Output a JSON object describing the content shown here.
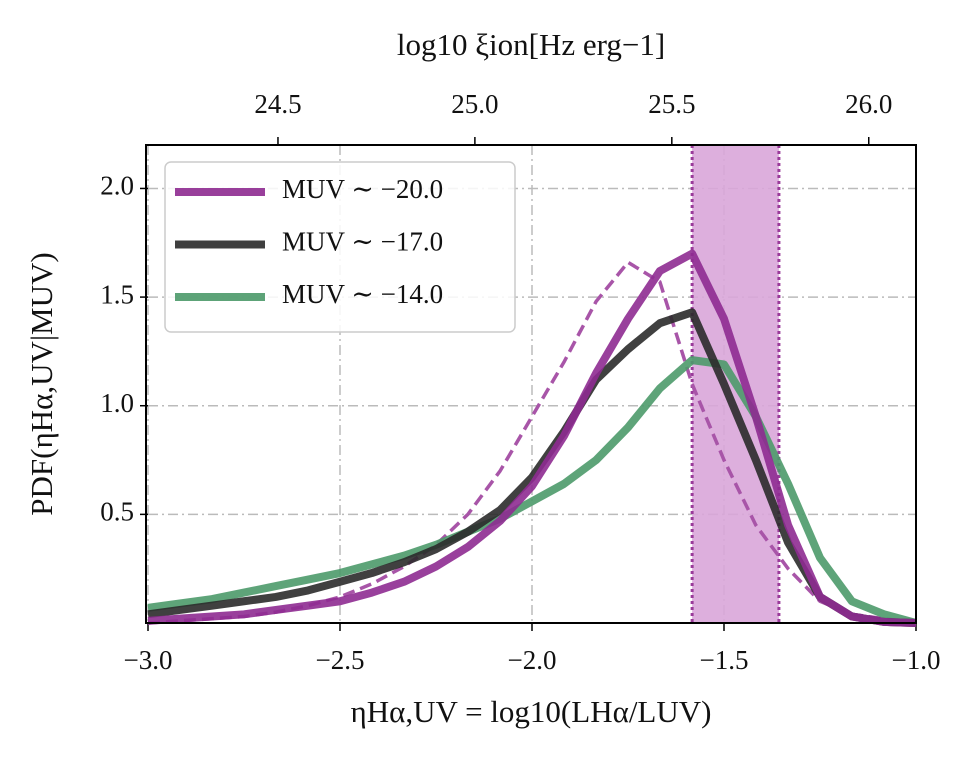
{
  "chart_data": {
    "type": "line",
    "title": "log10 ξion[Hz erg−1]",
    "xlabel": "ηHα,UV = log10(LHα/LUV)",
    "ylabel": "PDF(ηHα,UV|MUV)",
    "x": [
      -3.0,
      -2.917,
      -2.833,
      -2.75,
      -2.667,
      -2.583,
      -2.5,
      -2.417,
      -2.333,
      -2.25,
      -2.167,
      -2.083,
      -2.0,
      -1.917,
      -1.833,
      -1.75,
      -1.667,
      -1.583,
      -1.5,
      -1.417,
      -1.333,
      -1.25,
      -1.167,
      -1.083,
      -1.0
    ],
    "series": [
      {
        "name": "MUV ∼ −20.0",
        "color": "#8e2b91",
        "values": [
          0.01,
          0.02,
          0.03,
          0.04,
          0.06,
          0.08,
          0.1,
          0.14,
          0.19,
          0.26,
          0.35,
          0.47,
          0.63,
          0.86,
          1.15,
          1.4,
          1.62,
          1.7,
          1.4,
          0.95,
          0.45,
          0.12,
          0.03,
          0.005,
          0.0
        ]
      },
      {
        "name": "MUV ∼ −17.0",
        "color": "#2b2b2b",
        "values": [
          0.04,
          0.06,
          0.08,
          0.1,
          0.12,
          0.15,
          0.19,
          0.23,
          0.28,
          0.34,
          0.42,
          0.52,
          0.67,
          0.88,
          1.12,
          1.26,
          1.38,
          1.43,
          1.1,
          0.75,
          0.37,
          0.12,
          0.03,
          0.005,
          0.0
        ]
      },
      {
        "name": "MUV ∼ −14.0",
        "color": "#4c9a6a",
        "values": [
          0.07,
          0.09,
          0.11,
          0.14,
          0.17,
          0.2,
          0.23,
          0.27,
          0.31,
          0.36,
          0.42,
          0.48,
          0.56,
          0.64,
          0.75,
          0.9,
          1.08,
          1.21,
          1.19,
          0.95,
          0.64,
          0.3,
          0.1,
          0.04,
          0.0
        ]
      },
      {
        "color": "#a855a8",
        "dashed": true,
        "values": [
          0.0,
          0.01,
          0.02,
          0.03,
          0.05,
          0.08,
          0.12,
          0.18,
          0.26,
          0.36,
          0.5,
          0.7,
          0.95,
          1.2,
          1.48,
          1.66,
          1.57,
          1.1,
          0.75,
          0.45,
          0.25,
          0.1,
          0.04,
          0.02,
          0.0
        ]
      }
    ],
    "band": [
      -1.583,
      -1.357
    ],
    "band_color": "#d9a6d9",
    "xlim": [
      -3.0,
      -1.0
    ],
    "xticks": [
      {
        "value": -3.0,
        "label": "−3.0"
      },
      {
        "value": -2.5,
        "label": "−2.5"
      },
      {
        "value": -2.0,
        "label": "−2.0"
      },
      {
        "value": -1.5,
        "label": "−1.5"
      },
      {
        "value": -1.0,
        "label": "−1.0"
      }
    ],
    "ylim": [
      0,
      2.2
    ],
    "yticks": [
      0.5,
      {
        "value": 1.0,
        "label": "1.0"
      },
      1.5,
      {
        "value": 2.0,
        "label": "2.0"
      }
    ],
    "x2lim": [
      24.17,
      26.12
    ],
    "x2ticks": [
      24.5,
      {
        "value": 25.0,
        "label": "25.0"
      },
      25.5,
      {
        "value": 26.0,
        "label": "26.0"
      }
    ],
    "grid": true,
    "legend": "upper left"
  }
}
